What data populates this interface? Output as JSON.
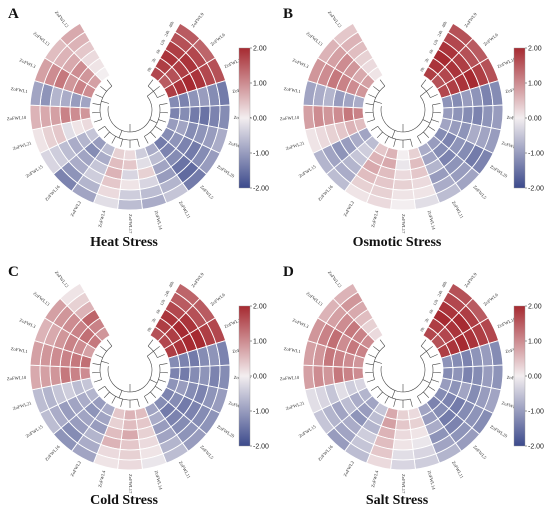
{
  "figure": {
    "colors": {
      "high": "#a62a31",
      "mid": "#f3eef0",
      "low": "#3c4a8c",
      "grid": "#ffffff",
      "tree": "#444444"
    },
    "time_labels": [
      "48h",
      "24h",
      "12h",
      "6h",
      "3h",
      "0h"
    ]
  },
  "chart_data": [
    {
      "type": "heatmap",
      "letter": "A",
      "title": "Heat Stress",
      "genes": [
        "ZoFWL9",
        "ZoFWL6",
        "ZoFWL18",
        "ZoFWL8",
        "ZoFWL7",
        "ZoFWL19",
        "ZoFWL20",
        "ZoFWL5",
        "ZoFWL11",
        "ZoFWL14",
        "ZoFWL17",
        "ZoFWL4",
        "ZoFWL2",
        "ZoFWL16",
        "ZoFWL15",
        "ZoFWL21",
        "ZoFWL10",
        "ZoFWL1",
        "ZoFWL3",
        "ZoFWL13",
        "ZoFWL12"
      ],
      "colorbar": {
        "ticks": [
          "2.00",
          "1.00",
          "0.00",
          "-1.00",
          "-2.00"
        ],
        "min": -2,
        "max": 2
      },
      "values": [
        [
          1.7,
          1.8,
          1.9,
          1.8,
          1.6,
          1.5
        ],
        [
          1.5,
          1.6,
          1.8,
          1.9,
          1.7,
          1.4
        ],
        [
          1.8,
          1.9,
          2.0,
          1.9,
          1.7,
          1.6
        ],
        [
          -1.2,
          -1.3,
          -1.1,
          -1.0,
          -1.2,
          -1.4
        ],
        [
          -1.3,
          -1.2,
          -1.4,
          -1.5,
          -1.3,
          -1.2
        ],
        [
          -1.0,
          -0.9,
          -1.2,
          -1.1,
          -1.0,
          -0.8
        ],
        [
          -1.2,
          -1.1,
          -1.3,
          -1.4,
          -1.2,
          -1.0
        ],
        [
          -1.4,
          -1.3,
          -1.2,
          -1.5,
          -1.6,
          -1.4
        ],
        [
          -0.8,
          -0.6,
          -0.9,
          -1.0,
          -0.7,
          -0.5
        ],
        [
          -0.4,
          -0.2,
          0.3,
          -0.3,
          -0.6,
          -0.8
        ],
        [
          0.2,
          0.4,
          -0.3,
          0.1,
          -0.4,
          -0.6
        ],
        [
          0.3,
          0.5,
          0.6,
          0.4,
          0.2,
          -0.2
        ],
        [
          -0.6,
          -0.8,
          -0.5,
          -0.4,
          -0.7,
          -0.9
        ],
        [
          -1.0,
          -1.2,
          -0.9,
          -0.8,
          -1.1,
          -1.3
        ],
        [
          -0.5,
          -0.7,
          -0.8,
          -0.6,
          -0.4,
          -0.3
        ],
        [
          0.2,
          0.1,
          -0.2,
          0.4,
          0.3,
          0.1
        ],
        [
          0.9,
          1.0,
          1.1,
          0.8,
          0.7,
          0.6
        ],
        [
          -0.9,
          -1.0,
          -0.8,
          -0.7,
          -1.1,
          -0.9
        ],
        [
          1.0,
          1.1,
          0.9,
          1.2,
          1.0,
          0.8
        ],
        [
          0.8,
          0.9,
          1.0,
          0.7,
          0.6,
          0.5
        ],
        [
          0.0,
          0.1,
          0.2,
          0.4,
          0.6,
          0.7
        ]
      ]
    },
    {
      "type": "heatmap",
      "letter": "B",
      "title": "Osmotic Stress",
      "genes": [
        "ZoFWL9",
        "ZoFWL6",
        "ZoFWL18",
        "ZoFWL8",
        "ZoFWL7",
        "ZoFWL19",
        "ZoFWL20",
        "ZoFWL5",
        "ZoFWL11",
        "ZoFWL14",
        "ZoFWL17",
        "ZoFWL4",
        "ZoFWL2",
        "ZoFWL16",
        "ZoFWL15",
        "ZoFWL21",
        "ZoFWL10",
        "ZoFWL1",
        "ZoFWL3",
        "ZoFWL13",
        "ZoFWL12"
      ],
      "colorbar": {
        "ticks": [
          "2.00",
          "1.00",
          "0.00",
          "-1.00",
          "-2.00"
        ],
        "min": -2,
        "max": 2
      },
      "values": [
        [
          1.8,
          1.9,
          2.0,
          1.9,
          1.7,
          1.6
        ],
        [
          1.6,
          1.7,
          1.9,
          1.8,
          1.6,
          1.5
        ],
        [
          1.7,
          1.8,
          1.9,
          2.0,
          1.8,
          1.6
        ],
        [
          -1.1,
          -1.2,
          -1.0,
          -1.1,
          -1.3,
          -1.2
        ],
        [
          -1.0,
          -1.1,
          -1.2,
          -1.3,
          -1.1,
          -1.0
        ],
        [
          -0.9,
          -1.0,
          -1.1,
          -0.8,
          -0.9,
          -1.0
        ],
        [
          -1.2,
          -1.3,
          -1.1,
          -1.2,
          -1.4,
          -1.3
        ],
        [
          -1.0,
          -1.2,
          -1.3,
          -1.1,
          -1.0,
          -0.9
        ],
        [
          -0.8,
          -0.9,
          -0.7,
          -1.0,
          -0.8,
          -0.6
        ],
        [
          0.3,
          0.5,
          0.4,
          0.2,
          0.1,
          -0.2
        ],
        [
          0.0,
          -0.1,
          0.2,
          0.3,
          0.1,
          0.0
        ],
        [
          0.6,
          0.7,
          0.5,
          0.4,
          0.3,
          0.2
        ],
        [
          0.4,
          0.6,
          0.7,
          0.5,
          0.3,
          0.1
        ],
        [
          -0.6,
          -0.4,
          -0.5,
          -0.7,
          -0.8,
          -0.6
        ],
        [
          -0.9,
          -0.8,
          -1.0,
          -1.1,
          -0.9,
          -0.7
        ],
        [
          0.5,
          0.6,
          0.4,
          0.3,
          0.2,
          0.1
        ],
        [
          1.1,
          1.2,
          1.0,
          0.9,
          1.0,
          0.8
        ],
        [
          -0.8,
          -0.9,
          -1.0,
          -0.7,
          -0.8,
          -0.9
        ],
        [
          0.9,
          1.0,
          1.1,
          1.2,
          1.0,
          0.9
        ],
        [
          0.8,
          0.7,
          0.9,
          1.0,
          0.8,
          0.6
        ],
        [
          0.1,
          0.2,
          0.3,
          0.5,
          0.6,
          0.4
        ]
      ]
    },
    {
      "type": "heatmap",
      "letter": "C",
      "title": "Cold Stress",
      "genes": [
        "ZoFWL9",
        "ZoFWL6",
        "ZoFWL18",
        "ZoFWL8",
        "ZoFWL7",
        "ZoFWL19",
        "ZoFWL20",
        "ZoFWL5",
        "ZoFWL11",
        "ZoFWL14",
        "ZoFWL17",
        "ZoFWL4",
        "ZoFWL2",
        "ZoFWL16",
        "ZoFWL15",
        "ZoFWL21",
        "ZoFWL10",
        "ZoFWL1",
        "ZoFWL3",
        "ZoFWL13",
        "ZoFWL12"
      ],
      "colorbar": {
        "ticks": [
          "2.00",
          "1.00",
          "0.00",
          "-1.00",
          "-2.00"
        ],
        "min": -2,
        "max": 2
      },
      "values": [
        [
          1.6,
          1.8,
          1.9,
          1.7,
          1.5,
          1.4
        ],
        [
          1.7,
          1.8,
          2.0,
          1.9,
          1.6,
          1.5
        ],
        [
          1.8,
          1.9,
          2.0,
          2.0,
          1.8,
          1.7
        ],
        [
          -1.2,
          -1.3,
          -1.4,
          -1.2,
          -1.1,
          -1.3
        ],
        [
          -1.3,
          -1.4,
          -1.2,
          -1.1,
          -1.3,
          -1.2
        ],
        [
          -1.1,
          -1.0,
          -1.2,
          -1.3,
          -1.1,
          -1.0
        ],
        [
          -1.3,
          -1.2,
          -1.4,
          -1.3,
          -1.2,
          -1.1
        ],
        [
          -1.2,
          -1.4,
          -1.3,
          -1.2,
          -1.1,
          -1.0
        ],
        [
          -0.9,
          -0.8,
          -1.0,
          -0.9,
          -0.7,
          -0.6
        ],
        [
          0.5,
          0.4,
          0.3,
          0.2,
          0.1,
          -0.1
        ],
        [
          0.6,
          0.5,
          0.7,
          0.4,
          0.3,
          0.2
        ],
        [
          0.4,
          0.3,
          0.5,
          0.6,
          0.2,
          0.1
        ],
        [
          -0.8,
          -0.9,
          -1.0,
          -0.7,
          -0.8,
          -0.9
        ],
        [
          -1.0,
          -1.1,
          -0.9,
          -1.0,
          -1.2,
          -1.1
        ],
        [
          -0.7,
          -0.8,
          -0.9,
          -1.0,
          -0.8,
          -0.6
        ],
        [
          -0.5,
          -0.6,
          -0.4,
          -0.5,
          -0.7,
          -0.6
        ],
        [
          1.0,
          1.1,
          1.2,
          0.9,
          0.8,
          0.7
        ],
        [
          1.3,
          1.2,
          1.1,
          1.0,
          0.9,
          0.8
        ],
        [
          0.8,
          1.0,
          1.1,
          0.9,
          0.7,
          0.6
        ],
        [
          1.2,
          1.3,
          1.1,
          1.0,
          0.9,
          0.8
        ],
        [
          0.9,
          1.1,
          1.4,
          0.6,
          0.3,
          0.1
        ]
      ]
    },
    {
      "type": "heatmap",
      "letter": "D",
      "title": "Salt Stress",
      "genes": [
        "ZoFWL9",
        "ZoFWL6",
        "ZoFWL18",
        "ZoFWL8",
        "ZoFWL7",
        "ZoFWL19",
        "ZoFWL20",
        "ZoFWL5",
        "ZoFWL11",
        "ZoFWL14",
        "ZoFWL17",
        "ZoFWL4",
        "ZoFWL2",
        "ZoFWL16",
        "ZoFWL15",
        "ZoFWL21",
        "ZoFWL10",
        "ZoFWL1",
        "ZoFWL3",
        "ZoFWL13",
        "ZoFWL12"
      ],
      "colorbar": {
        "ticks": [
          "2.00",
          "1.00",
          "0.00",
          "-1.00",
          "-2.00"
        ],
        "min": -2,
        "max": 2
      },
      "values": [
        [
          1.7,
          1.8,
          2.0,
          1.9,
          1.7,
          1.6
        ],
        [
          1.6,
          1.7,
          1.9,
          2.0,
          1.8,
          1.5
        ],
        [
          1.8,
          1.9,
          2.0,
          1.9,
          1.8,
          1.7
        ],
        [
          -1.1,
          -1.2,
          -1.3,
          -1.1,
          -1.0,
          -1.2
        ],
        [
          -1.2,
          -1.1,
          -1.3,
          -1.2,
          -1.0,
          -1.1
        ],
        [
          -1.0,
          -1.1,
          -0.9,
          -1.2,
          -1.0,
          -0.9
        ],
        [
          -1.2,
          -1.3,
          -1.4,
          -1.2,
          -1.1,
          -1.2
        ],
        [
          -1.3,
          -1.2,
          -1.4,
          -1.3,
          -1.1,
          -1.0
        ],
        [
          -0.9,
          -1.0,
          -0.8,
          -1.1,
          -0.9,
          -0.7
        ],
        [
          0.2,
          0.3,
          0.1,
          -0.1,
          -0.3,
          -0.4
        ],
        [
          0.3,
          0.4,
          0.2,
          0.1,
          -0.2,
          -0.3
        ],
        [
          0.7,
          0.8,
          0.6,
          0.5,
          0.4,
          0.2
        ],
        [
          -0.5,
          -0.6,
          -0.7,
          -0.4,
          -0.5,
          -0.6
        ],
        [
          -0.9,
          -1.0,
          -1.1,
          -0.8,
          -0.9,
          -1.0
        ],
        [
          -0.7,
          -0.8,
          -0.6,
          -0.9,
          -0.7,
          -0.5
        ],
        [
          -0.3,
          -0.4,
          -0.2,
          -0.5,
          -0.3,
          -0.2
        ],
        [
          1.0,
          1.1,
          1.2,
          0.9,
          1.0,
          0.8
        ],
        [
          0.9,
          1.0,
          1.1,
          1.2,
          0.9,
          0.8
        ],
        [
          1.1,
          1.2,
          1.0,
          1.3,
          1.1,
          0.9
        ],
        [
          1.0,
          1.1,
          1.2,
          1.0,
          0.8,
          0.6
        ],
        [
          0.2,
          0.3,
          0.5,
          0.7,
          0.9,
          0.6
        ]
      ]
    }
  ]
}
